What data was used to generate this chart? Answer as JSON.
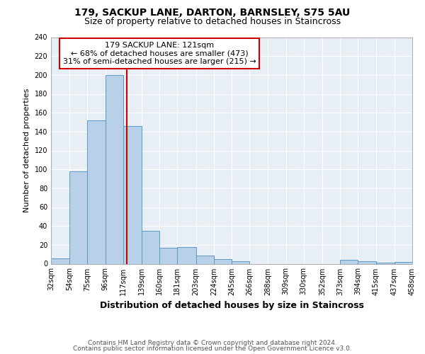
{
  "title": "179, SACKUP LANE, DARTON, BARNSLEY, S75 5AU",
  "subtitle": "Size of property relative to detached houses in Staincross",
  "xlabel": "Distribution of detached houses by size in Staincross",
  "ylabel": "Number of detached properties",
  "bar_edges": [
    32,
    54,
    75,
    96,
    117,
    139,
    160,
    181,
    203,
    224,
    245,
    266,
    288,
    309,
    330,
    352,
    373,
    394,
    415,
    437,
    458
  ],
  "bar_heights": [
    6,
    98,
    152,
    200,
    146,
    35,
    17,
    18,
    9,
    5,
    3,
    0,
    0,
    0,
    0,
    0,
    4,
    3,
    1,
    2
  ],
  "bar_color": "#b8d0e8",
  "bar_edgecolor": "#5a9ac8",
  "vline_x": 121,
  "vline_color": "#cc0000",
  "ylim": [
    0,
    240
  ],
  "yticks": [
    0,
    20,
    40,
    60,
    80,
    100,
    120,
    140,
    160,
    180,
    200,
    220,
    240
  ],
  "tick_labels": [
    "32sqm",
    "54sqm",
    "75sqm",
    "96sqm",
    "117sqm",
    "139sqm",
    "160sqm",
    "181sqm",
    "203sqm",
    "224sqm",
    "245sqm",
    "266sqm",
    "288sqm",
    "309sqm",
    "330sqm",
    "352sqm",
    "373sqm",
    "394sqm",
    "415sqm",
    "437sqm",
    "458sqm"
  ],
  "annotation_title": "179 SACKUP LANE: 121sqm",
  "annotation_line1": "← 68% of detached houses are smaller (473)",
  "annotation_line2": "31% of semi-detached houses are larger (215) →",
  "annotation_box_color": "#ffffff",
  "annotation_box_edgecolor": "#cc0000",
  "footer1": "Contains HM Land Registry data © Crown copyright and database right 2024.",
  "footer2": "Contains public sector information licensed under the Open Government Licence v3.0.",
  "fig_background_color": "#ffffff",
  "axes_background_color": "#e8eef5",
  "grid_color": "#ffffff"
}
